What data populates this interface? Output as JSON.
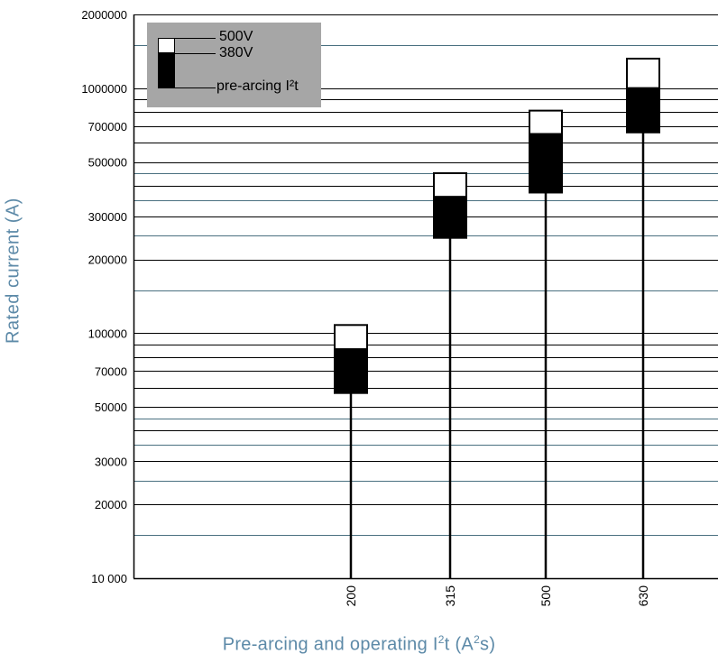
{
  "chart_data": {
    "type": "bar",
    "title": "",
    "xlabel": "Pre-arcing and operating I²t (A²s)",
    "ylabel": "Rated current (A)",
    "y_scale": "log",
    "ylim": [
      10000,
      2000000
    ],
    "y_tick_labels": [
      "10 000",
      "20000",
      "30000",
      "50000",
      "70000",
      "100000",
      "200000",
      "300000",
      "500000",
      "700000",
      "1000000",
      "2000000"
    ],
    "y_tick_values": [
      10000,
      20000,
      30000,
      50000,
      70000,
      100000,
      200000,
      300000,
      500000,
      700000,
      1000000,
      2000000
    ],
    "categories": [
      "200",
      "315",
      "500",
      "630"
    ],
    "series": [
      {
        "name": "pre-arcing I²t",
        "color": "#000000",
        "low": [
          57000,
          245000,
          375000,
          660000
        ],
        "high": [
          86000,
          360000,
          650000,
          1000000
        ]
      },
      {
        "name": "380V",
        "color": "#000000",
        "values": [
          86000,
          360000,
          650000,
          1000000
        ]
      },
      {
        "name": "500V",
        "color": "#ffffff",
        "values": [
          108000,
          450000,
          810000,
          1320000
        ]
      }
    ],
    "legend_position": "top-left",
    "legend": {
      "line1": "500V",
      "line2": "380V",
      "line3": "pre-arcing I²t"
    },
    "grid": true,
    "colors": {
      "major_grid": "#000000",
      "minor_grid": "#4a7080",
      "legend_bg": "#a6a6a6",
      "axis_title": "#5d8aa8"
    }
  }
}
